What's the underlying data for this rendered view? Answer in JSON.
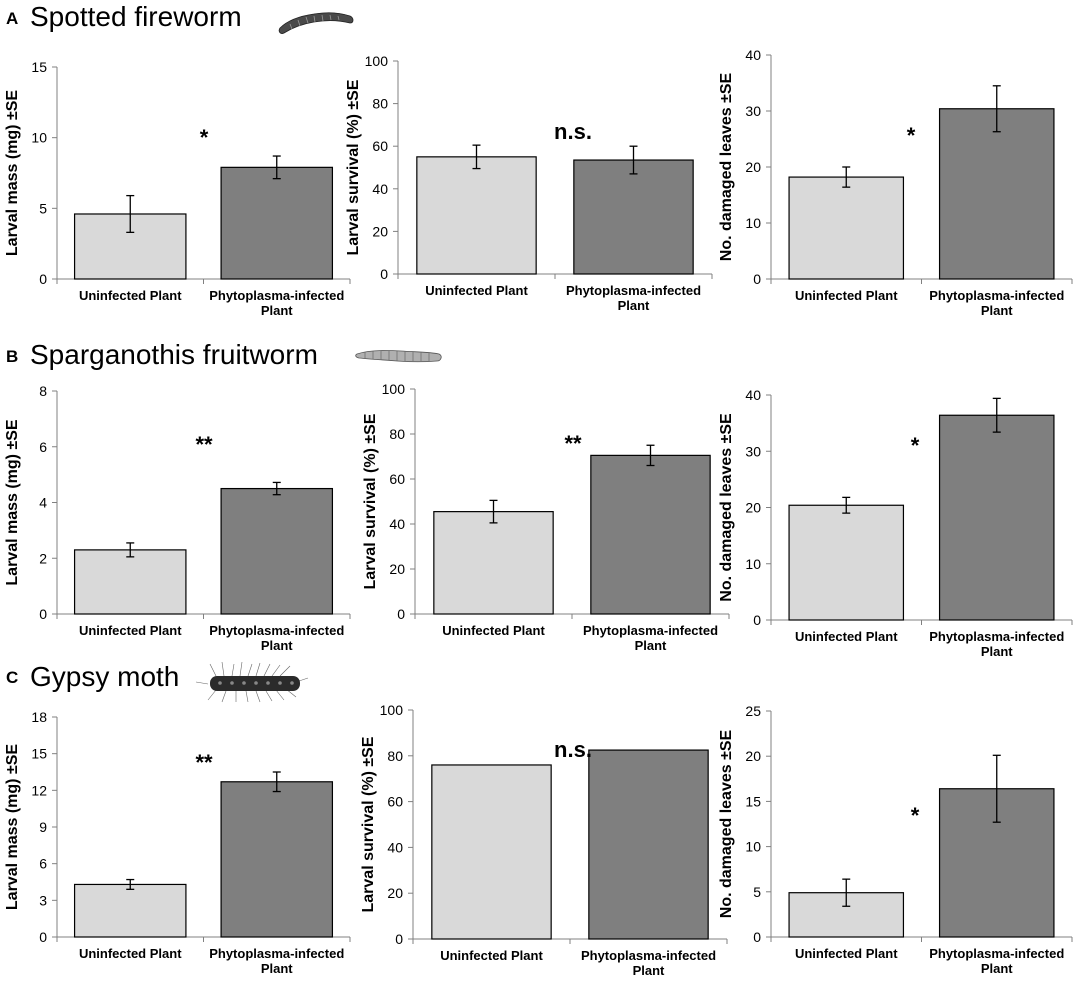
{
  "panels": [
    {
      "letter": "A",
      "title": "Spotted fireworm",
      "caterpillar_icon": "smooth-caterpillar-icon"
    },
    {
      "letter": "B",
      "title": "Sparganothis fruitworm",
      "caterpillar_icon": "segmented-caterpillar-icon"
    },
    {
      "letter": "C",
      "title": "Gypsy moth",
      "caterpillar_icon": "hairy-caterpillar-icon"
    }
  ],
  "colors": {
    "uninfected": "#d9d9d9",
    "infected": "#7f7f7f",
    "axis": "#808080",
    "bar_edge": "#000000"
  },
  "chart_data": [
    {
      "panel": "A",
      "type": "bar",
      "categories": [
        "Uninfected Plant",
        "Phytoplasma-infected Plant"
      ],
      "values": [
        4.6,
        7.9
      ],
      "errors": [
        1.3,
        0.8
      ],
      "ylabel": "Larval mass (mg) ±SE",
      "ylim": [
        0,
        15
      ],
      "yticks": [
        0,
        5,
        10,
        15
      ],
      "significance": "*"
    },
    {
      "panel": "A",
      "type": "bar",
      "categories": [
        "Uninfected Plant",
        "Phytoplasma-infected Plant"
      ],
      "values": [
        55,
        53.5
      ],
      "errors": [
        5.5,
        6.5
      ],
      "ylabel": "Larval survival (%) ±SE",
      "ylim": [
        0,
        100
      ],
      "yticks": [
        0,
        20,
        40,
        60,
        80,
        100
      ],
      "significance": "n.s."
    },
    {
      "panel": "A",
      "type": "bar",
      "categories": [
        "Uninfected Plant",
        "Phytoplasma-infected Plant"
      ],
      "values": [
        18.2,
        30.4
      ],
      "errors": [
        1.8,
        4.1
      ],
      "ylabel": "No. damaged leaves ±SE",
      "ylim": [
        0,
        40
      ],
      "yticks": [
        0,
        10,
        20,
        30,
        40
      ],
      "significance": "*"
    },
    {
      "panel": "B",
      "type": "bar",
      "categories": [
        "Uninfected Plant",
        "Phytoplasma-infected Plant"
      ],
      "values": [
        2.3,
        4.5
      ],
      "errors": [
        0.25,
        0.22
      ],
      "ylabel": "Larval mass (mg) ±SE",
      "ylim": [
        0,
        8
      ],
      "yticks": [
        0,
        2,
        4,
        6,
        8
      ],
      "significance": "**"
    },
    {
      "panel": "B",
      "type": "bar",
      "categories": [
        "Uninfected Plant",
        "Phytoplasma-infected Plant"
      ],
      "values": [
        45.5,
        70.5
      ],
      "errors": [
        5,
        4.5
      ],
      "ylabel": "Larval survival (%) ±SE",
      "ylim": [
        0,
        100
      ],
      "yticks": [
        0,
        20,
        40,
        60,
        80,
        100
      ],
      "significance": "**"
    },
    {
      "panel": "B",
      "type": "bar",
      "categories": [
        "Uninfected Plant",
        "Phytoplasma-infected Plant"
      ],
      "values": [
        20.4,
        36.4
      ],
      "errors": [
        1.4,
        3
      ],
      "ylabel": "No. damaged leaves ±SE",
      "ylim": [
        0,
        40
      ],
      "yticks": [
        0,
        10,
        20,
        30,
        40
      ],
      "significance": "*"
    },
    {
      "panel": "C",
      "type": "bar",
      "categories": [
        "Uninfected Plant",
        "Phytoplasma-infected Plant"
      ],
      "values": [
        4.3,
        12.7
      ],
      "errors": [
        0.4,
        0.8
      ],
      "ylabel": "Larval mass (mg) ±SE",
      "ylim": [
        0,
        18
      ],
      "yticks": [
        0,
        3,
        6,
        9,
        12,
        15,
        18
      ],
      "significance": "**"
    },
    {
      "panel": "C",
      "type": "bar",
      "categories": [
        "Uninfected Plant",
        "Phytoplasma-infected Plant"
      ],
      "values": [
        76,
        82.5
      ],
      "errors": [
        0,
        0
      ],
      "ylabel": "Larval survival (%) ±SE",
      "ylim": [
        0,
        100
      ],
      "yticks": [
        0,
        20,
        40,
        60,
        80,
        100
      ],
      "significance": "n.s."
    },
    {
      "panel": "C",
      "type": "bar",
      "categories": [
        "Uninfected Plant",
        "Phytoplasma-infected Plant"
      ],
      "values": [
        4.9,
        16.4
      ],
      "errors": [
        1.5,
        3.7
      ],
      "ylabel": "No. damaged leaves ±SE",
      "ylim": [
        0,
        25
      ],
      "yticks": [
        0,
        5,
        10,
        15,
        20,
        25
      ],
      "significance": "*"
    }
  ]
}
